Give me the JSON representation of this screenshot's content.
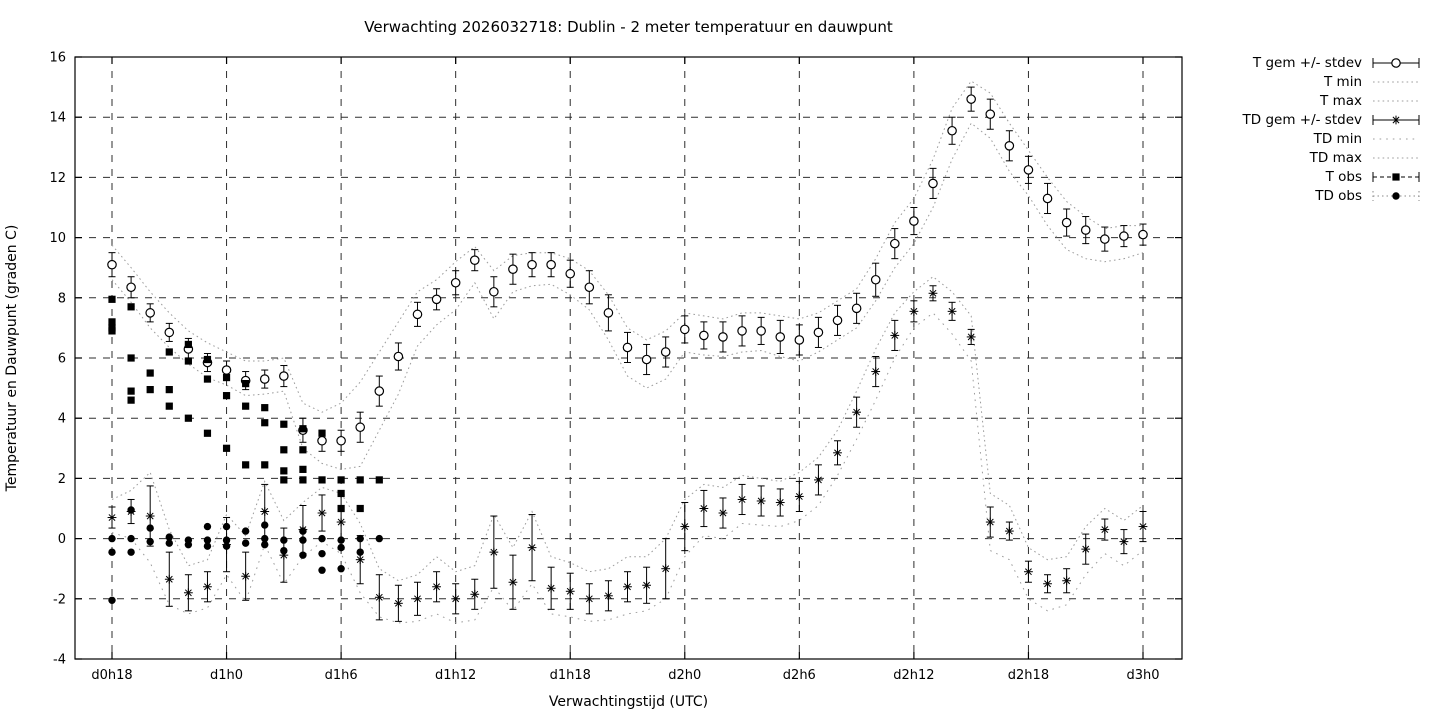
{
  "chart_data": {
    "type": "line",
    "title": "Verwachting 2026032718: Dublin - 2 meter temperatuur en dauwpunt",
    "xlabel": "Verwachtingstijd (UTC)",
    "ylabel": "Temperatuur en Dauwpunt (graden C)",
    "ylim": [
      -4,
      16
    ],
    "y_ticks": [
      -4,
      -2,
      0,
      2,
      4,
      6,
      8,
      10,
      12,
      14,
      16
    ],
    "x_hours_total": 54,
    "x_ticks": [
      {
        "hour": 0,
        "label": "d0h18"
      },
      {
        "hour": 6,
        "label": "d1h0"
      },
      {
        "hour": 12,
        "label": "d1h6"
      },
      {
        "hour": 18,
        "label": "d1h12"
      },
      {
        "hour": 24,
        "label": "d1h18"
      },
      {
        "hour": 30,
        "label": "d2h0"
      },
      {
        "hour": 36,
        "label": "d2h6"
      },
      {
        "hour": 42,
        "label": "d2h12"
      },
      {
        "hour": 48,
        "label": "d2h18"
      },
      {
        "hour": 54,
        "label": "d3h0"
      }
    ],
    "grid": true,
    "legend_position": "right-outside",
    "colors": {
      "axis": "#000000",
      "grid": "#2e2e2e",
      "envelope": "#9c9c9c",
      "series": "#000000",
      "background": "#ffffff"
    },
    "series": [
      {
        "name": "T gem +/- stdev",
        "style": "errorbar",
        "marker": "circle-open",
        "values": [
          9.1,
          8.35,
          7.5,
          6.85,
          6.3,
          5.85,
          5.6,
          5.25,
          5.3,
          5.4,
          3.6,
          3.25,
          3.25,
          3.7,
          4.9,
          6.05,
          7.45,
          7.95,
          8.5,
          9.25,
          8.2,
          8.95,
          9.1,
          9.1,
          8.8,
          8.35,
          7.5,
          6.35,
          5.95,
          6.2,
          6.95,
          6.75,
          6.7,
          6.9,
          6.9,
          6.7,
          6.6,
          6.85,
          7.25,
          7.65,
          8.6,
          9.8,
          10.55,
          11.8,
          13.55,
          14.6,
          14.1,
          13.05,
          12.25,
          11.3,
          10.5,
          10.25,
          9.95,
          10.05,
          10.1
        ],
        "stdev": [
          0.4,
          0.35,
          0.3,
          0.3,
          0.35,
          0.3,
          0.3,
          0.3,
          0.3,
          0.35,
          0.4,
          0.35,
          0.35,
          0.5,
          0.5,
          0.45,
          0.4,
          0.35,
          0.4,
          0.35,
          0.5,
          0.5,
          0.4,
          0.4,
          0.45,
          0.55,
          0.6,
          0.5,
          0.5,
          0.5,
          0.45,
          0.45,
          0.5,
          0.5,
          0.45,
          0.55,
          0.5,
          0.5,
          0.5,
          0.5,
          0.55,
          0.5,
          0.45,
          0.5,
          0.45,
          0.4,
          0.5,
          0.5,
          0.45,
          0.5,
          0.45,
          0.45,
          0.4,
          0.35,
          0.35
        ]
      },
      {
        "name": "T min",
        "style": "dotted",
        "values": [
          8.6,
          7.85,
          7.0,
          6.35,
          5.8,
          5.35,
          5.1,
          4.75,
          4.8,
          4.9,
          3.0,
          2.5,
          2.3,
          2.4,
          3.6,
          4.8,
          6.4,
          7.1,
          7.6,
          8.5,
          7.3,
          8.2,
          8.4,
          8.45,
          8.1,
          7.6,
          6.6,
          5.4,
          5.0,
          5.3,
          6.2,
          6.1,
          6.05,
          6.2,
          6.25,
          6.05,
          5.9,
          6.2,
          6.6,
          7.0,
          7.9,
          9.0,
          9.8,
          11.0,
          12.6,
          13.8,
          13.3,
          12.2,
          11.4,
          10.4,
          9.6,
          9.3,
          9.2,
          9.3,
          9.5
        ]
      },
      {
        "name": "T max",
        "style": "dotted",
        "values": [
          9.75,
          9.0,
          8.2,
          7.5,
          6.9,
          6.5,
          6.2,
          5.9,
          5.9,
          6.0,
          4.5,
          4.2,
          4.5,
          5.2,
          6.2,
          7.2,
          8.2,
          8.6,
          9.2,
          9.7,
          8.9,
          9.4,
          9.5,
          9.5,
          9.3,
          8.9,
          8.1,
          7.0,
          6.6,
          6.9,
          7.5,
          7.4,
          7.3,
          7.5,
          7.5,
          7.4,
          7.3,
          7.5,
          7.9,
          8.3,
          9.3,
          10.5,
          11.3,
          12.6,
          14.3,
          15.2,
          14.8,
          13.8,
          12.9,
          12.0,
          11.2,
          10.7,
          10.3,
          10.4,
          10.4
        ]
      },
      {
        "name": "TD gem +/- stdev",
        "style": "errorbar",
        "marker": "asterisk",
        "values": [
          0.7,
          0.9,
          0.75,
          -1.35,
          -1.8,
          -1.6,
          -0.2,
          -1.25,
          0.9,
          -0.55,
          0.3,
          0.85,
          0.55,
          -0.7,
          -1.95,
          -2.15,
          -2.0,
          -1.6,
          -2.0,
          -1.85,
          -0.45,
          -1.45,
          -0.3,
          -1.65,
          -1.75,
          -2.0,
          -1.9,
          -1.6,
          -1.55,
          -1.0,
          0.4,
          1.0,
          0.85,
          1.3,
          1.25,
          1.2,
          1.4,
          1.95,
          2.85,
          4.2,
          5.55,
          6.75,
          7.55,
          8.15,
          7.55,
          6.7,
          0.55,
          0.25,
          -1.1,
          -1.5,
          -1.4,
          -0.35,
          0.3,
          -0.1,
          0.4
        ],
        "stdev": [
          0.35,
          0.4,
          1.0,
          0.9,
          0.6,
          0.5,
          0.9,
          0.8,
          0.9,
          0.9,
          0.8,
          0.6,
          0.9,
          0.8,
          0.75,
          0.6,
          0.55,
          0.5,
          0.5,
          0.5,
          1.2,
          0.9,
          1.1,
          0.7,
          0.6,
          0.5,
          0.5,
          0.5,
          0.6,
          1.0,
          0.8,
          0.6,
          0.5,
          0.5,
          0.5,
          0.45,
          0.5,
          0.5,
          0.4,
          0.5,
          0.5,
          0.5,
          0.35,
          0.25,
          0.3,
          0.25,
          0.5,
          0.3,
          0.35,
          0.3,
          0.4,
          0.5,
          0.35,
          0.4,
          0.5
        ]
      },
      {
        "name": "TD min",
        "style": "dotted-sparse",
        "values": [
          0.2,
          0.0,
          -0.8,
          -2.2,
          -2.5,
          -2.3,
          -1.2,
          -2.1,
          -0.2,
          -1.5,
          -0.6,
          -0.1,
          -0.5,
          -1.8,
          -2.6,
          -2.8,
          -2.75,
          -2.5,
          -2.8,
          -2.7,
          -1.6,
          -2.4,
          -1.5,
          -2.5,
          -2.6,
          -2.75,
          -2.7,
          -2.5,
          -2.4,
          -2.0,
          -0.6,
          0.1,
          0.0,
          0.5,
          0.45,
          0.4,
          0.6,
          1.1,
          2.1,
          3.3,
          4.6,
          6.0,
          7.0,
          7.5,
          6.8,
          5.9,
          -0.4,
          -0.7,
          -2.0,
          -2.4,
          -2.2,
          -1.2,
          -0.5,
          -0.9,
          -0.4
        ]
      },
      {
        "name": "TD max",
        "style": "dotted",
        "values": [
          1.3,
          1.6,
          2.2,
          0.3,
          -0.9,
          -0.7,
          0.8,
          0.1,
          1.9,
          0.6,
          1.2,
          1.7,
          1.5,
          0.5,
          -1.0,
          -1.4,
          -1.2,
          -0.6,
          -1.1,
          -0.9,
          0.8,
          -0.3,
          0.9,
          -0.6,
          -0.8,
          -1.1,
          -1.0,
          -0.6,
          -0.6,
          0.0,
          1.3,
          1.8,
          1.7,
          2.1,
          2.0,
          1.9,
          2.2,
          2.7,
          3.6,
          4.9,
          6.3,
          7.5,
          8.2,
          8.7,
          8.2,
          7.4,
          1.5,
          1.1,
          -0.3,
          -0.7,
          -0.6,
          0.4,
          1.0,
          0.6,
          1.1
        ]
      },
      {
        "name": "T obs",
        "style": "points-dashed",
        "marker": "square-filled",
        "points": [
          [
            0,
            7.95
          ],
          [
            0,
            7.2
          ],
          [
            0,
            7.0
          ],
          [
            0,
            6.9
          ],
          [
            1,
            7.7
          ],
          [
            1,
            6.0
          ],
          [
            1,
            4.9
          ],
          [
            1,
            4.6
          ],
          [
            2,
            5.5
          ],
          [
            2,
            4.95
          ],
          [
            3,
            6.2
          ],
          [
            3,
            4.95
          ],
          [
            3,
            4.4
          ],
          [
            4,
            6.45
          ],
          [
            4,
            5.9
          ],
          [
            4,
            4.0
          ],
          [
            5,
            5.95
          ],
          [
            5,
            5.3
          ],
          [
            5,
            3.5
          ],
          [
            6,
            5.35
          ],
          [
            6,
            4.75
          ],
          [
            6,
            3.0
          ],
          [
            7,
            5.15
          ],
          [
            7,
            4.4
          ],
          [
            7,
            2.45
          ],
          [
            8,
            4.35
          ],
          [
            8,
            3.85
          ],
          [
            8,
            2.45
          ],
          [
            9,
            3.8
          ],
          [
            9,
            2.95
          ],
          [
            9,
            2.25
          ],
          [
            9,
            1.95
          ],
          [
            10,
            3.65
          ],
          [
            10,
            2.95
          ],
          [
            10,
            2.3
          ],
          [
            10,
            1.95
          ],
          [
            11,
            3.5
          ],
          [
            11,
            1.95
          ],
          [
            12,
            1.95
          ],
          [
            12,
            1.5
          ],
          [
            12,
            1.0
          ],
          [
            13,
            1.95
          ],
          [
            13,
            1.0
          ],
          [
            14,
            1.95
          ]
        ]
      },
      {
        "name": "TD obs",
        "style": "points-dotted",
        "marker": "circle-filled",
        "points": [
          [
            0,
            0.0
          ],
          [
            0,
            -0.45
          ],
          [
            0,
            -2.05
          ],
          [
            1,
            0.95
          ],
          [
            1,
            0.0
          ],
          [
            1,
            -0.45
          ],
          [
            2,
            0.35
          ],
          [
            2,
            -0.1
          ],
          [
            3,
            0.05
          ],
          [
            3,
            -0.15
          ],
          [
            4,
            -0.05
          ],
          [
            4,
            -0.2
          ],
          [
            5,
            0.4
          ],
          [
            5,
            -0.05
          ],
          [
            5,
            -0.25
          ],
          [
            6,
            0.4
          ],
          [
            6,
            -0.05
          ],
          [
            6,
            -0.25
          ],
          [
            7,
            0.25
          ],
          [
            7,
            -0.15
          ],
          [
            8,
            0.45
          ],
          [
            8,
            0.0
          ],
          [
            8,
            -0.2
          ],
          [
            9,
            -0.05
          ],
          [
            9,
            -0.4
          ],
          [
            10,
            0.25
          ],
          [
            10,
            -0.05
          ],
          [
            10,
            -0.55
          ],
          [
            11,
            0.0
          ],
          [
            11,
            -0.5
          ],
          [
            11,
            -1.05
          ],
          [
            12,
            -0.05
          ],
          [
            12,
            -0.3
          ],
          [
            12,
            -1.0
          ],
          [
            13,
            0.0
          ],
          [
            13,
            -0.45
          ],
          [
            14,
            0.0
          ]
        ]
      }
    ]
  }
}
